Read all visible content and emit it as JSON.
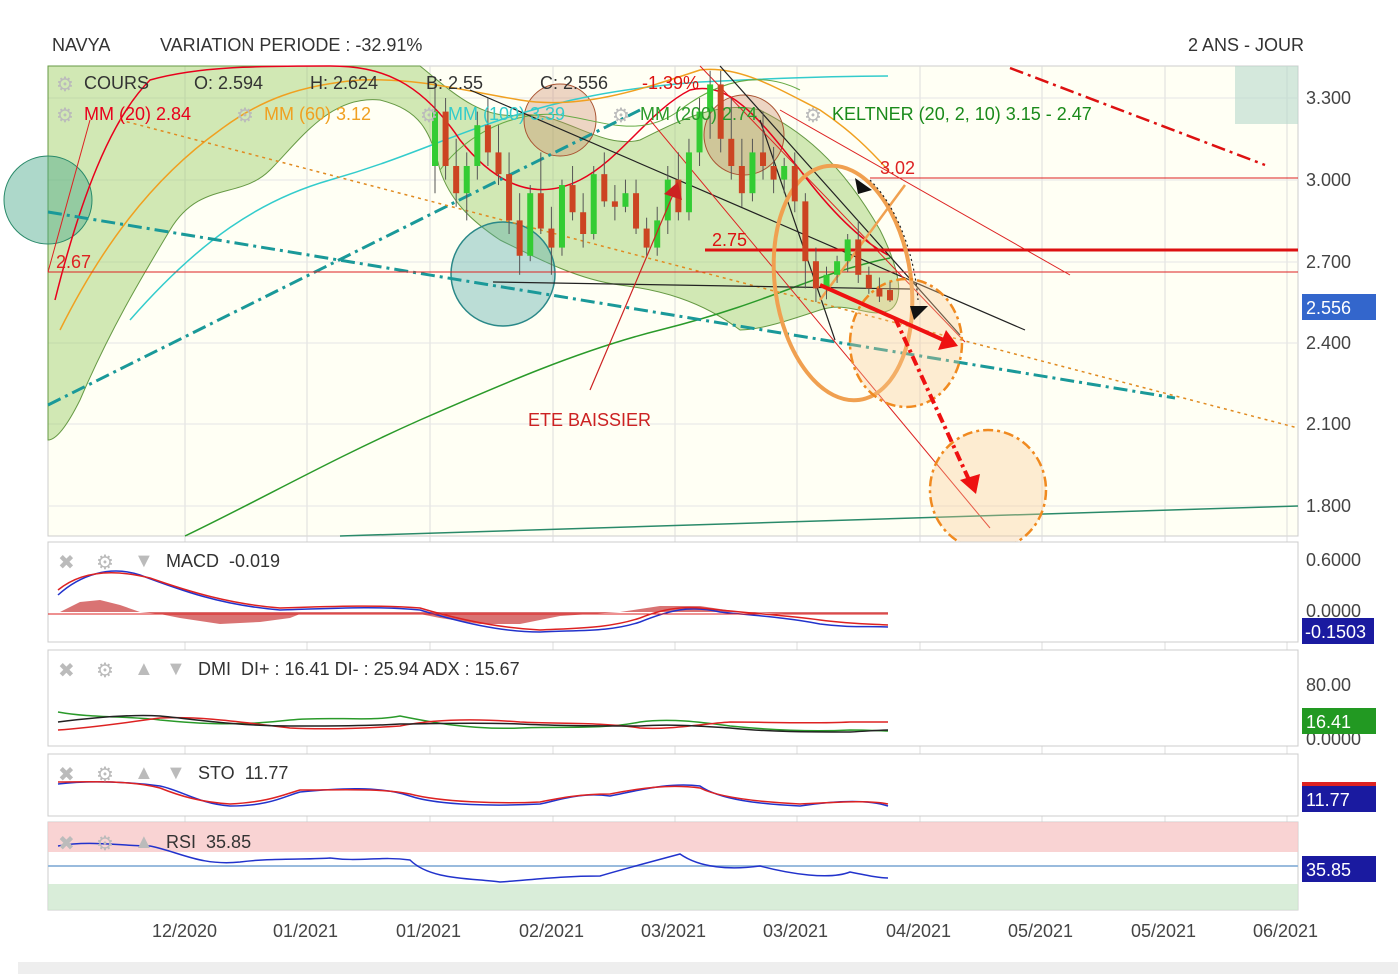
{
  "header": {
    "ticker": "NAVYA",
    "variation": "VARIATION PERIODE : -32.91%",
    "period": "2 ANS - JOUR"
  },
  "legend": {
    "cours": "COURS",
    "open": "O: 2.594",
    "high": "H: 2.624",
    "low": "B: 2.55",
    "close": "C: 2.556",
    "change": "-1.39%",
    "mm20": "MM (20)  2.84",
    "mm60": "MM (60)  3.12",
    "mm100": "MM (100)  3.39",
    "mm200": "MM (200)  2.74",
    "keltner": "KELTNER (20, 2, 10)  3.15 - 2.47"
  },
  "annotations": {
    "ete": "ETE BAISSIER",
    "level_302": "3.02",
    "level_275": "2.75",
    "level_267": "2.67"
  },
  "colors": {
    "mm20": "#e8001c",
    "mm60": "#f0a020",
    "mm100": "#33cccc",
    "mm200": "#2a9a2a",
    "keltner": "#1a8a1a",
    "up_candle": "#33cc33",
    "down_candle": "#cc4422",
    "price_badge": "#3366cc",
    "macd_badge": "#1a1aa0",
    "dmi_badge": "#229922",
    "sto_badge": "#1a1aa0",
    "rsi_badge": "#1a1aa0"
  },
  "panels": {
    "macd": {
      "label": "MACD",
      "value": "-0.019",
      "badge": "-0.1503",
      "ticks": [
        "0.6000",
        "0.0000"
      ]
    },
    "dmi": {
      "label": "DMI",
      "value": "DI+ : 16.41  DI- : 25.94  ADX : 15.67",
      "badge": "16.41",
      "ticks": [
        "80.00",
        "0.0000"
      ]
    },
    "sto": {
      "label": "STO",
      "value": "11.77",
      "badge": "11.77"
    },
    "rsi": {
      "label": "RSI",
      "value": "35.85",
      "badge": "35.85"
    }
  },
  "chart_data": {
    "type": "candlestick",
    "price_axis": {
      "ticks": [
        "3.300",
        "3.000",
        "2.700",
        "2.400",
        "2.100",
        "1.800"
      ],
      "current_badge": "2.556"
    },
    "x_ticks": [
      "12/2020",
      "01/2021",
      "01/2021",
      "02/2021",
      "03/2021",
      "03/2021",
      "04/2021",
      "05/2021",
      "05/2021",
      "06/2021"
    ],
    "candles": [
      {
        "o": 3.05,
        "h": 3.35,
        "l": 2.95,
        "c": 3.25
      },
      {
        "o": 3.25,
        "h": 3.3,
        "l": 3.0,
        "c": 3.05
      },
      {
        "o": 3.05,
        "h": 3.15,
        "l": 2.9,
        "c": 2.95
      },
      {
        "o": 2.95,
        "h": 3.1,
        "l": 2.85,
        "c": 3.05
      },
      {
        "o": 3.05,
        "h": 3.25,
        "l": 3.0,
        "c": 3.2
      },
      {
        "o": 3.2,
        "h": 3.3,
        "l": 3.05,
        "c": 3.1
      },
      {
        "o": 3.1,
        "h": 3.2,
        "l": 2.98,
        "c": 3.02
      },
      {
        "o": 3.02,
        "h": 3.1,
        "l": 2.8,
        "c": 2.85
      },
      {
        "o": 2.85,
        "h": 2.95,
        "l": 2.65,
        "c": 2.72
      },
      {
        "o": 2.72,
        "h": 2.98,
        "l": 2.7,
        "c": 2.95
      },
      {
        "o": 2.95,
        "h": 3.1,
        "l": 2.8,
        "c": 2.82
      },
      {
        "o": 2.82,
        "h": 2.9,
        "l": 2.65,
        "c": 2.75
      },
      {
        "o": 2.75,
        "h": 3.0,
        "l": 2.72,
        "c": 2.98
      },
      {
        "o": 2.98,
        "h": 3.05,
        "l": 2.85,
        "c": 2.88
      },
      {
        "o": 2.88,
        "h": 2.95,
        "l": 2.75,
        "c": 2.8
      },
      {
        "o": 2.8,
        "h": 3.05,
        "l": 2.78,
        "c": 3.02
      },
      {
        "o": 3.02,
        "h": 3.1,
        "l": 2.9,
        "c": 2.92
      },
      {
        "o": 2.92,
        "h": 2.98,
        "l": 2.85,
        "c": 2.9
      },
      {
        "o": 2.9,
        "h": 3.0,
        "l": 2.88,
        "c": 2.95
      },
      {
        "o": 2.95,
        "h": 3.0,
        "l": 2.8,
        "c": 2.82
      },
      {
        "o": 2.82,
        "h": 2.86,
        "l": 2.72,
        "c": 2.75
      },
      {
        "o": 2.75,
        "h": 2.9,
        "l": 2.72,
        "c": 2.85
      },
      {
        "o": 2.85,
        "h": 3.05,
        "l": 2.8,
        "c": 3.0
      },
      {
        "o": 3.0,
        "h": 3.1,
        "l": 2.85,
        "c": 2.88
      },
      {
        "o": 2.88,
        "h": 3.15,
        "l": 2.85,
        "c": 3.1
      },
      {
        "o": 3.1,
        "h": 3.3,
        "l": 3.05,
        "c": 3.25
      },
      {
        "o": 3.25,
        "h": 3.4,
        "l": 3.15,
        "c": 3.35
      },
      {
        "o": 3.35,
        "h": 3.4,
        "l": 3.1,
        "c": 3.15
      },
      {
        "o": 3.15,
        "h": 3.3,
        "l": 3.0,
        "c": 3.05
      },
      {
        "o": 3.05,
        "h": 3.15,
        "l": 2.9,
        "c": 2.95
      },
      {
        "o": 2.95,
        "h": 3.15,
        "l": 2.92,
        "c": 3.1
      },
      {
        "o": 3.1,
        "h": 3.25,
        "l": 3.0,
        "c": 3.05
      },
      {
        "o": 3.05,
        "h": 3.12,
        "l": 2.95,
        "c": 3.0
      },
      {
        "o": 3.0,
        "h": 3.08,
        "l": 2.95,
        "c": 3.05
      },
      {
        "o": 3.05,
        "h": 3.1,
        "l": 2.88,
        "c": 2.92
      },
      {
        "o": 2.92,
        "h": 2.95,
        "l": 2.6,
        "c": 2.7
      },
      {
        "o": 2.7,
        "h": 2.75,
        "l": 2.55,
        "c": 2.6
      },
      {
        "o": 2.6,
        "h": 2.68,
        "l": 2.56,
        "c": 2.65
      },
      {
        "o": 2.65,
        "h": 2.72,
        "l": 2.62,
        "c": 2.7
      },
      {
        "o": 2.7,
        "h": 2.8,
        "l": 2.66,
        "c": 2.78
      },
      {
        "o": 2.78,
        "h": 2.85,
        "l": 2.62,
        "c": 2.65
      },
      {
        "o": 2.65,
        "h": 2.68,
        "l": 2.58,
        "c": 2.6
      },
      {
        "o": 2.6,
        "h": 2.64,
        "l": 2.55,
        "c": 2.57
      },
      {
        "o": 2.594,
        "h": 2.624,
        "l": 2.55,
        "c": 2.556
      }
    ],
    "moving_averages": {
      "mm20": 2.84,
      "mm60": 3.12,
      "mm100": 3.39,
      "mm200": 2.74
    },
    "keltner": {
      "upper": 3.15,
      "lower": 2.47
    },
    "horizontal_levels": [
      3.02,
      2.75,
      2.67
    ],
    "macd_value": -0.019,
    "dmi": {
      "di_plus": 16.41,
      "di_minus": 25.94,
      "adx": 15.67
    },
    "sto_value": 11.77,
    "rsi_value": 35.85
  }
}
